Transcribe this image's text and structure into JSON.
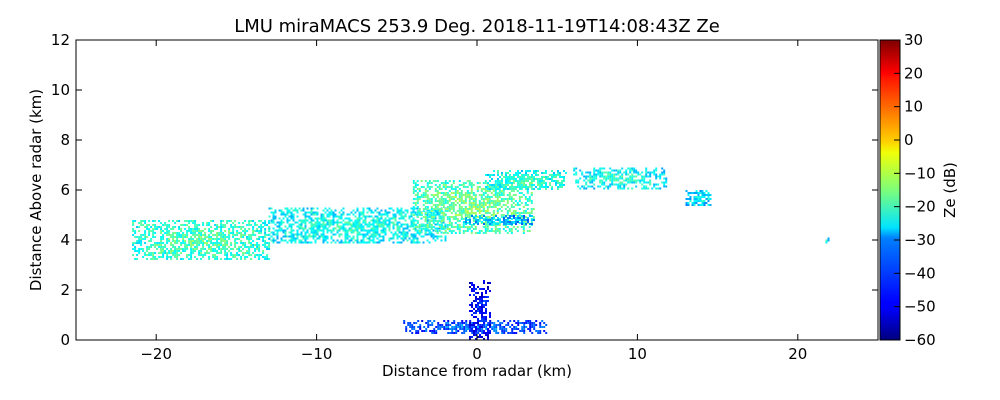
{
  "chart_data": {
    "type": "heatmap",
    "title": "LMU miraMACS 253.9 Deg. 2018-11-19T14:08:43Z  Ze",
    "xlabel": "Distance from radar (km)",
    "ylabel": "Distance Above radar  (km)",
    "xlim": [
      -25,
      25
    ],
    "ylim": [
      0,
      12
    ],
    "xticks": [
      -20,
      -10,
      0,
      10,
      20
    ],
    "xtick_labels": [
      "−20",
      "−10",
      "0",
      "10",
      "20"
    ],
    "yticks": [
      0,
      2,
      4,
      6,
      8,
      10,
      12
    ],
    "ytick_labels": [
      "0",
      "2",
      "4",
      "6",
      "8",
      "10",
      "12"
    ],
    "colorbar": {
      "label": "Ze (dB)",
      "colormap": "jet",
      "range": [
        -60,
        30
      ],
      "ticks": [
        30,
        20,
        10,
        0,
        -10,
        -20,
        -30,
        -40,
        -50,
        -60
      ],
      "tick_labels": [
        "30",
        "20",
        "10",
        "0",
        "−10",
        "−20",
        "−30",
        "−40",
        "−50",
        "−60"
      ]
    },
    "echo_regions": [
      {
        "name": "",
        "x": [
          -21.5,
          -13
        ],
        "y": [
          3.2,
          4.8
        ],
        "ze_db": -18
      },
      {
        "name": "",
        "x": [
          -13,
          -2
        ],
        "y": [
          3.9,
          5.3
        ],
        "ze_db": -22
      },
      {
        "name": "",
        "x": [
          -4,
          3.5
        ],
        "y": [
          4.3,
          6.4
        ],
        "ze_db": -15
      },
      {
        "name": "",
        "x": [
          0.5,
          5.5
        ],
        "y": [
          6.0,
          6.8
        ],
        "ze_db": -20
      },
      {
        "name": "",
        "x": [
          6,
          11.8
        ],
        "y": [
          6.1,
          6.9
        ],
        "ze_db": -22
      },
      {
        "name": "",
        "x": [
          -1,
          3.5
        ],
        "y": [
          4.6,
          5.0
        ],
        "ze_db": -30
      },
      {
        "name": "",
        "x": [
          13,
          14.6
        ],
        "y": [
          5.4,
          6.0
        ],
        "ze_db": -25
      },
      {
        "name": "",
        "x": [
          21.6,
          21.9
        ],
        "y": [
          3.9,
          4.1
        ],
        "ze_db": -25
      },
      {
        "name": "",
        "x": [
          -4.6,
          4.3
        ],
        "y": [
          0.3,
          0.8
        ],
        "ze_db": -38
      },
      {
        "name": "",
        "x": [
          -0.5,
          0.8
        ],
        "y": [
          0.0,
          2.4
        ],
        "ze_db": -45
      }
    ]
  }
}
